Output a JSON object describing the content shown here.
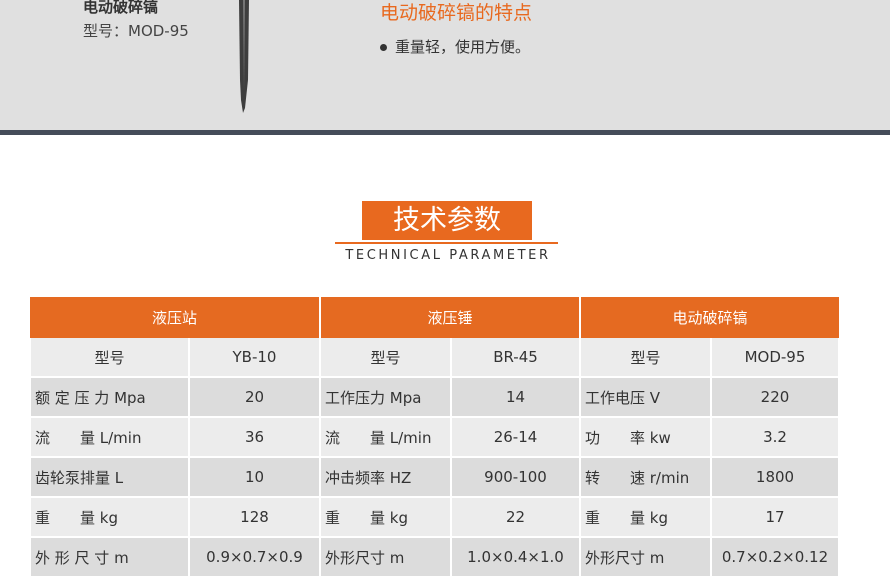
{
  "banner": {
    "product_name": "电动破碎镐",
    "model": "型号：MOD-95",
    "feature_title": "电动破碎镐的特点",
    "feature_item": "重量轻，使用方便。"
  },
  "section": {
    "title": "技术参数",
    "subtitle": "TECHNICAL PARAMETER"
  },
  "colors": {
    "accent": "#e8691f",
    "dark_bar": "#454c59"
  },
  "table": {
    "groups": [
      "液压站",
      "液压锤",
      "电动破碎镐"
    ],
    "rows": [
      [
        "型号",
        "YB-10",
        "型号",
        "BR-45",
        "型号",
        "MOD-95"
      ],
      [
        "额 定 压 力  Mpa",
        "20",
        "工作压力  Mpa",
        "14",
        "工作电压  V",
        "220"
      ],
      [
        "流　　量 L/min",
        "36",
        "流　　量 L/min",
        "26-14",
        "功　　率 kw",
        "3.2"
      ],
      [
        "齿轮泵排量  L",
        "10",
        "冲击频率  HZ",
        "900-100",
        "转　　速 r/min",
        "1800"
      ],
      [
        "重　　量 kg",
        "128",
        "重　　量 kg",
        "22",
        "重　　量 kg",
        "17"
      ],
      [
        "外 形 尺 寸  m",
        "0.9×0.7×0.9",
        "外形尺寸  m",
        "1.0×0.4×1.0",
        "外形尺寸  m",
        "0.7×0.2×0.12"
      ]
    ]
  }
}
